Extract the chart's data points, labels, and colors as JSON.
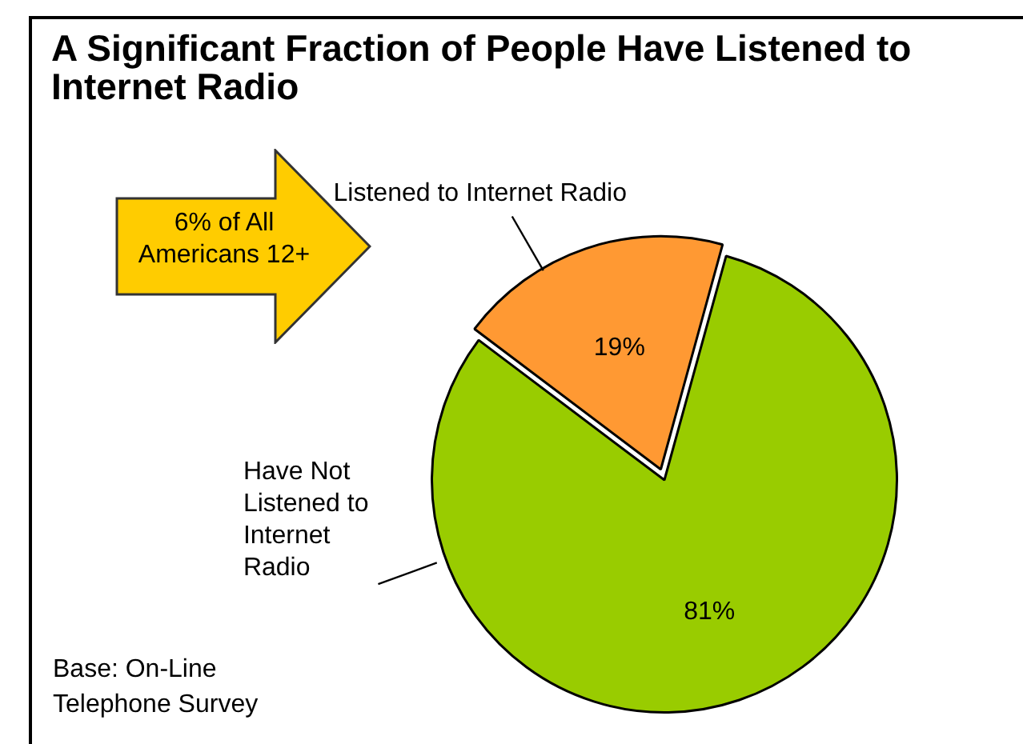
{
  "chart_data": {
    "type": "pie",
    "title": "A Significant Fraction of People Have Listened to Internet Radio",
    "categories": [
      "Listened to Internet Radio",
      "Have Not Listened to Internet Radio"
    ],
    "values": [
      19,
      81
    ],
    "colors": [
      "#ff9933",
      "#99cc00"
    ],
    "value_labels": [
      "19%",
      "81%"
    ],
    "annotations": [
      "6% of All Americans 12+",
      "Base:  On-Line Telephone Survey"
    ]
  }
}
